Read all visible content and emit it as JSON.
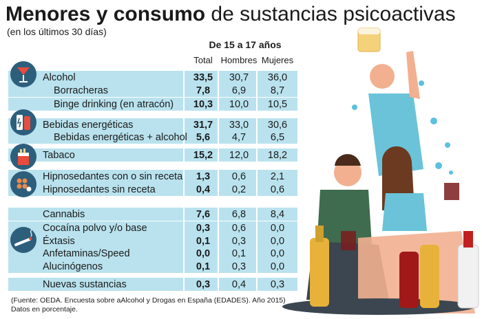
{
  "header": {
    "title_bold": "Menores y consumo",
    "title_light": "de sustancias psicoactivas",
    "subtitle": "(en los últimos 30 días)"
  },
  "table": {
    "group_header": "De 15 a 17 años",
    "columns": [
      "Total",
      "Hombres",
      "Mujeres"
    ]
  },
  "chart_data": {
    "type": "table",
    "title": "Menores y consumo de sustancias psicoactivas",
    "subtitle": "(en los últimos 30 días)",
    "group": "De 15 a 17 años",
    "columns": [
      "Total",
      "Hombres",
      "Mujeres"
    ],
    "rows": [
      {
        "label": "Alcohol",
        "values": [
          "33,5",
          "30,7",
          "36,0"
        ]
      },
      {
        "label": "Borracheras",
        "values": [
          "7,8",
          "6,9",
          "8,7"
        ]
      },
      {
        "label": "Binge drinking (en atracón)",
        "values": [
          "10,3",
          "10,0",
          "10,5"
        ]
      },
      {
        "label": "Bebidas energéticas",
        "values": [
          "31,7",
          "33,0",
          "30,6"
        ]
      },
      {
        "label": "Bebidas energéticas + alcohol",
        "values": [
          "5,6",
          "4,7",
          "6,5"
        ]
      },
      {
        "label": "Tabaco",
        "values": [
          "15,2",
          "12,0",
          "18,2"
        ]
      },
      {
        "label": "Hipnosedantes con o sin receta",
        "values": [
          "1,3",
          "0,6",
          "2,1"
        ]
      },
      {
        "label": "Hipnosedantes sin receta",
        "values": [
          "0,4",
          "0,2",
          "0,6"
        ]
      },
      {
        "label": "Cannabis",
        "values": [
          "7,6",
          "6,8",
          "8,4"
        ]
      },
      {
        "label": "Cocaína polvo y/o base",
        "values": [
          "0,3",
          "0,6",
          "0,0"
        ]
      },
      {
        "label": "Éxtasis",
        "values": [
          "0,1",
          "0,3",
          "0,0"
        ]
      },
      {
        "label": "Anfetaminas/Speed",
        "values": [
          "0,0",
          "0,1",
          "0,0"
        ]
      },
      {
        "label": "Alucinógenos",
        "values": [
          "0,1",
          "0,3",
          "0,0"
        ]
      },
      {
        "label": "Nuevas sustancias",
        "values": [
          "0,3",
          "0,4",
          "0,3"
        ]
      }
    ]
  },
  "icons": [
    "cocktail-icon",
    "energy-drink-icon",
    "cigarette-pack-icon",
    "pills-icon",
    "joint-icon"
  ],
  "colors": {
    "band": "#b9e2ee",
    "icon_bg": "#2d5f7c"
  },
  "footer": {
    "source": "(Fuente: OEDA. Encuesta sobre aAlcohol y Drogas en España (EDADES). Año 2015)",
    "note": "Datos en porcentaje."
  }
}
